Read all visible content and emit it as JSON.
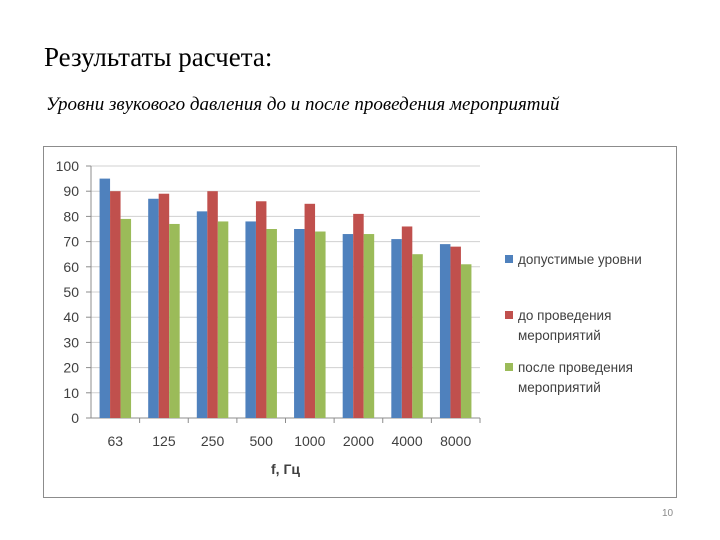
{
  "slide": {
    "title": "Результаты расчета:",
    "subtitle": "Уровни звукового давления до и после проведения мероприятий",
    "page_number": "10"
  },
  "chart_data": {
    "type": "bar",
    "categories": [
      "63",
      "125",
      "250",
      "500",
      "1000",
      "2000",
      "4000",
      "8000"
    ],
    "series": [
      {
        "name": "допустимые уровни",
        "color": "#4f81bd",
        "values": [
          95,
          87,
          82,
          78,
          75,
          73,
          71,
          69
        ]
      },
      {
        "name": "до проведения мероприятий",
        "color": "#c0504d",
        "values": [
          90,
          89,
          90,
          86,
          85,
          81,
          76,
          68
        ]
      },
      {
        "name": "после проведения мероприятий",
        "color": "#9bbb59",
        "values": [
          79,
          77,
          78,
          75,
          74,
          73,
          65,
          61
        ]
      }
    ],
    "xlabel": "f, Гц",
    "ylabel": "",
    "ylim": [
      0,
      100
    ],
    "yticks": [
      0,
      10,
      20,
      30,
      40,
      50,
      60,
      70,
      80,
      90,
      100
    ],
    "grid": true,
    "legend": "right"
  }
}
